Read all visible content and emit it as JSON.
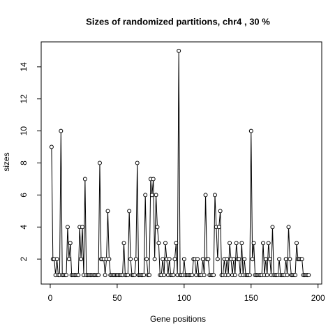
{
  "chart_data": {
    "type": "line",
    "title": "Sizes of randomized partitions, chr4 , 30 %",
    "xlabel": "Gene positions",
    "ylabel": "sizes",
    "x": [
      1,
      2,
      3,
      4,
      5,
      6,
      7,
      8,
      9,
      10,
      11,
      12,
      13,
      14,
      15,
      16,
      17,
      18,
      19,
      20,
      21,
      22,
      23,
      24,
      25,
      26,
      27,
      28,
      29,
      30,
      31,
      32,
      33,
      34,
      35,
      36,
      37,
      38,
      39,
      40,
      41,
      42,
      43,
      44,
      45,
      46,
      47,
      48,
      49,
      50,
      51,
      52,
      53,
      54,
      55,
      56,
      57,
      58,
      59,
      60,
      61,
      62,
      63,
      64,
      65,
      66,
      67,
      68,
      69,
      70,
      71,
      72,
      73,
      74,
      75,
      76,
      77,
      78,
      79,
      80,
      81,
      82,
      83,
      84,
      85,
      86,
      87,
      88,
      89,
      90,
      91,
      92,
      93,
      94,
      95,
      96,
      97,
      98,
      99,
      100,
      101,
      102,
      103,
      104,
      105,
      106,
      107,
      108,
      109,
      110,
      111,
      112,
      113,
      114,
      115,
      116,
      117,
      118,
      119,
      120,
      121,
      122,
      123,
      124,
      125,
      126,
      127,
      128,
      129,
      130,
      131,
      132,
      133,
      134,
      135,
      136,
      137,
      138,
      139,
      140,
      141,
      142,
      143,
      144,
      145,
      146,
      147,
      148,
      149,
      150,
      151,
      152,
      153,
      154,
      155,
      156,
      157,
      158,
      159,
      160,
      161,
      162,
      163,
      164,
      165,
      166,
      167,
      168,
      169,
      170,
      171,
      172,
      173,
      174,
      175,
      176,
      177,
      178,
      179,
      180,
      181,
      182,
      183,
      184,
      185,
      186,
      187,
      188,
      189,
      190,
      191,
      192,
      193
    ],
    "series": [
      {
        "name": "sizes",
        "color": "#000000",
        "values": [
          9,
          2,
          2,
          1,
          2,
          1,
          1,
          10,
          1,
          1,
          1,
          1,
          4,
          2,
          3,
          1,
          1,
          1,
          1,
          1,
          1,
          4,
          2,
          4,
          1,
          7,
          1,
          1,
          1,
          1,
          1,
          1,
          1,
          1,
          1,
          1,
          8,
          2,
          2,
          2,
          1,
          2,
          5,
          2,
          1,
          1,
          1,
          1,
          1,
          1,
          1,
          1,
          1,
          1,
          3,
          1,
          1,
          1,
          5,
          2,
          1,
          1,
          1,
          2,
          8,
          1,
          1,
          1,
          1,
          1,
          6,
          2,
          1,
          1,
          7,
          6,
          7,
          2,
          6,
          4,
          3,
          1,
          1,
          2,
          1,
          3,
          2,
          1,
          2,
          1,
          1,
          1,
          2,
          3,
          1,
          15,
          1,
          1,
          1,
          2,
          1,
          1,
          1,
          1,
          1,
          1,
          2,
          2,
          1,
          2,
          1,
          1,
          1,
          2,
          1,
          6,
          2,
          2,
          1,
          1,
          1,
          1,
          6,
          4,
          2,
          4,
          5,
          1,
          1,
          2,
          1,
          2,
          1,
          3,
          2,
          1,
          2,
          1,
          3,
          2,
          2,
          1,
          3,
          1,
          2,
          1,
          1,
          1,
          1,
          10,
          2,
          3,
          1,
          1,
          1,
          1,
          1,
          1,
          3,
          1,
          2,
          1,
          3,
          2,
          1,
          4,
          1,
          1,
          1,
          1,
          2,
          1,
          1,
          1,
          1,
          2,
          1,
          4,
          2,
          1,
          1,
          1,
          1,
          3,
          2,
          2,
          2,
          2,
          1,
          1,
          1,
          1,
          1
        ]
      }
    ],
    "xlim": [
      -6.76,
      202.76
    ],
    "xticks": [
      0,
      50,
      100,
      150,
      200
    ],
    "ylim": [
      0.44,
      15.56
    ],
    "yticks": [
      2,
      4,
      6,
      8,
      10,
      12,
      14
    ]
  }
}
